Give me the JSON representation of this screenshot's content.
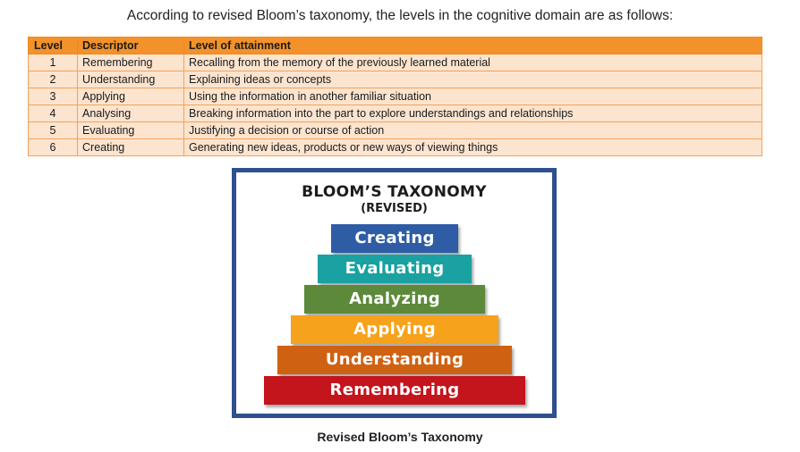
{
  "intro_text": "According to revised Bloom’s taxonomy, the levels in the cognitive domain are as follows:",
  "table": {
    "headers": {
      "level": "Level",
      "descriptor": "Descriptor",
      "attainment": "Level of attainment"
    },
    "rows": [
      {
        "level": "1",
        "descriptor": "Remembering",
        "attainment": "Recalling from the memory of the previously learned material"
      },
      {
        "level": "2",
        "descriptor": "Understanding",
        "attainment": "Explaining ideas or concepts"
      },
      {
        "level": "3",
        "descriptor": "Applying",
        "attainment": "Using the information in another familiar situation"
      },
      {
        "level": "4",
        "descriptor": "Analysing",
        "attainment": "Breaking information into the part to explore understandings and relationships"
      },
      {
        "level": "5",
        "descriptor": "Evaluating",
        "attainment": "Justifying a decision or course of action"
      },
      {
        "level": "6",
        "descriptor": "Creating",
        "attainment": "Generating new ideas, products or new ways of viewing things"
      }
    ]
  },
  "figure": {
    "title": "BLOOM’S TAXONOMY",
    "subtitle": "(REVISED)",
    "tiers": [
      {
        "label": "Creating",
        "color": "#2e5da6"
      },
      {
        "label": "Evaluating",
        "color": "#1aa1a1"
      },
      {
        "label": "Analyzing",
        "color": "#5c8a3a"
      },
      {
        "label": "Applying",
        "color": "#f7a21c"
      },
      {
        "label": "Understanding",
        "color": "#cf6212"
      },
      {
        "label": "Remembering",
        "color": "#c4141c"
      }
    ],
    "border_color": "#2f4f8f"
  },
  "caption": "Revised Bloom’s Taxonomy"
}
